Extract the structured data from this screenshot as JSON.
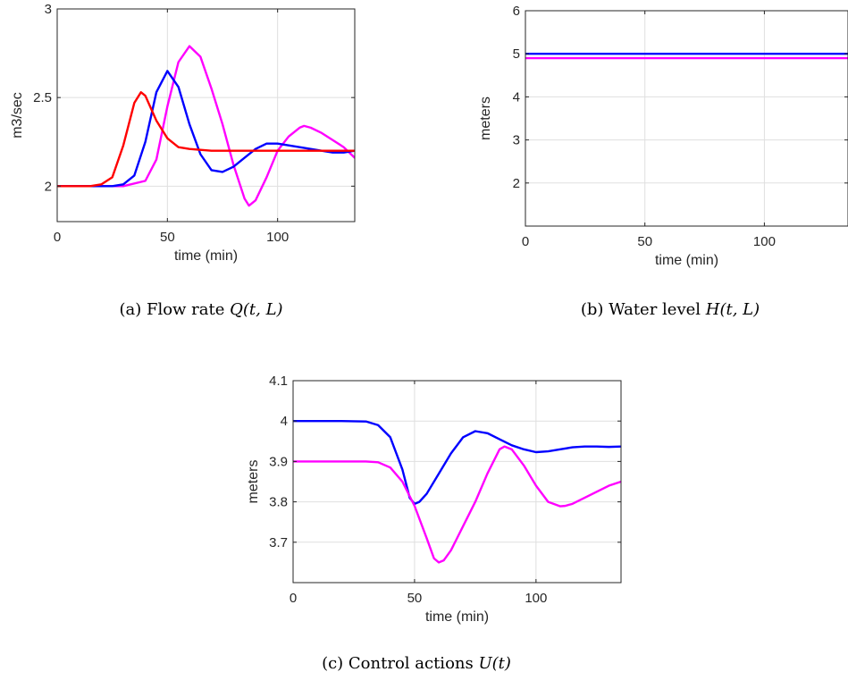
{
  "chart_data": [
    {
      "id": "a",
      "type": "line",
      "caption": {
        "text": "(a) Flow rate ",
        "math": "Q(t, L)"
      },
      "xlabel": "time (min)",
      "ylabel": "m3/sec",
      "xlim": [
        0,
        135
      ],
      "ylim": [
        1.8,
        3.0
      ],
      "xticks": [
        0,
        50,
        100
      ],
      "yticks": [
        2,
        2.5,
        3
      ],
      "ytick_labels": [
        "2",
        "2.5",
        "3"
      ],
      "grid": true,
      "series": [
        {
          "color": "#ff00ff",
          "x": [
            0,
            10,
            20,
            30,
            40,
            45,
            50,
            55,
            60,
            65,
            70,
            75,
            80,
            85,
            87,
            90,
            95,
            100,
            105,
            110,
            112,
            115,
            120,
            125,
            130,
            135
          ],
          "y": [
            2.0,
            2.0,
            2.0,
            2.0,
            2.03,
            2.15,
            2.45,
            2.7,
            2.79,
            2.73,
            2.55,
            2.35,
            2.12,
            1.93,
            1.89,
            1.92,
            2.05,
            2.2,
            2.28,
            2.33,
            2.34,
            2.33,
            2.3,
            2.26,
            2.22,
            2.16
          ]
        },
        {
          "color": "#0000ff",
          "x": [
            0,
            10,
            20,
            25,
            30,
            35,
            40,
            45,
            50,
            55,
            60,
            65,
            70,
            75,
            80,
            85,
            90,
            95,
            100,
            105,
            110,
            115,
            120,
            125,
            130,
            135
          ],
          "y": [
            2.0,
            2.0,
            2.0,
            2.0,
            2.01,
            2.06,
            2.25,
            2.53,
            2.65,
            2.56,
            2.35,
            2.18,
            2.09,
            2.08,
            2.11,
            2.16,
            2.21,
            2.24,
            2.24,
            2.23,
            2.22,
            2.21,
            2.2,
            2.19,
            2.19,
            2.2
          ]
        },
        {
          "color": "#ff0000",
          "x": [
            0,
            10,
            15,
            20,
            25,
            30,
            35,
            38,
            40,
            45,
            50,
            55,
            60,
            70,
            80,
            100,
            120,
            135
          ],
          "y": [
            2.0,
            2.0,
            2.0,
            2.01,
            2.05,
            2.23,
            2.47,
            2.53,
            2.51,
            2.37,
            2.27,
            2.22,
            2.21,
            2.2,
            2.2,
            2.2,
            2.2,
            2.2
          ]
        }
      ]
    },
    {
      "id": "b",
      "type": "line",
      "caption": {
        "text": "(b) Water level ",
        "math": "H(t, L)"
      },
      "xlabel": "time (min)",
      "ylabel": "meters",
      "xlim": [
        0,
        135
      ],
      "ylim": [
        1,
        6
      ],
      "xticks": [
        0,
        50,
        100
      ],
      "yticks": [
        2,
        3,
        4,
        5,
        6
      ],
      "ytick_labels": [
        "2",
        "3",
        "4",
        "5",
        "6"
      ],
      "grid": true,
      "series": [
        {
          "color": "#0000ff",
          "x": [
            0,
            135
          ],
          "y": [
            5.0,
            5.0
          ]
        },
        {
          "color": "#ff00ff",
          "x": [
            0,
            135
          ],
          "y": [
            4.9,
            4.9
          ]
        }
      ]
    },
    {
      "id": "c",
      "type": "line",
      "caption": {
        "text": "(c) Control actions ",
        "math": "U(t)"
      },
      "xlabel": "time (min)",
      "ylabel": "meters",
      "xlim": [
        0,
        135
      ],
      "ylim": [
        3.6,
        4.1
      ],
      "xticks": [
        0,
        50,
        100
      ],
      "yticks": [
        3.7,
        3.8,
        3.9,
        4.0,
        4.1
      ],
      "ytick_labels": [
        "3.7",
        "3.8",
        "3.9",
        "4",
        "4.1"
      ],
      "grid": true,
      "series": [
        {
          "color": "#0000ff",
          "x": [
            0,
            20,
            30,
            35,
            40,
            45,
            48,
            50,
            52,
            55,
            60,
            65,
            70,
            75,
            80,
            85,
            90,
            95,
            100,
            105,
            110,
            115,
            120,
            125,
            130,
            135
          ],
          "y": [
            4.0,
            4.0,
            3.999,
            3.99,
            3.96,
            3.88,
            3.81,
            3.795,
            3.8,
            3.82,
            3.87,
            3.92,
            3.96,
            3.975,
            3.97,
            3.955,
            3.94,
            3.93,
            3.923,
            3.925,
            3.93,
            3.935,
            3.937,
            3.937,
            3.936,
            3.937
          ]
        },
        {
          "color": "#ff00ff",
          "x": [
            0,
            20,
            30,
            35,
            40,
            45,
            50,
            55,
            58,
            60,
            62,
            65,
            70,
            75,
            80,
            85,
            87,
            90,
            95,
            100,
            105,
            110,
            112,
            115,
            120,
            125,
            130,
            135
          ],
          "y": [
            3.9,
            3.9,
            3.9,
            3.898,
            3.885,
            3.85,
            3.79,
            3.71,
            3.66,
            3.65,
            3.655,
            3.68,
            3.74,
            3.8,
            3.87,
            3.93,
            3.937,
            3.93,
            3.89,
            3.84,
            3.8,
            3.789,
            3.79,
            3.795,
            3.81,
            3.825,
            3.84,
            3.85
          ]
        }
      ]
    }
  ]
}
